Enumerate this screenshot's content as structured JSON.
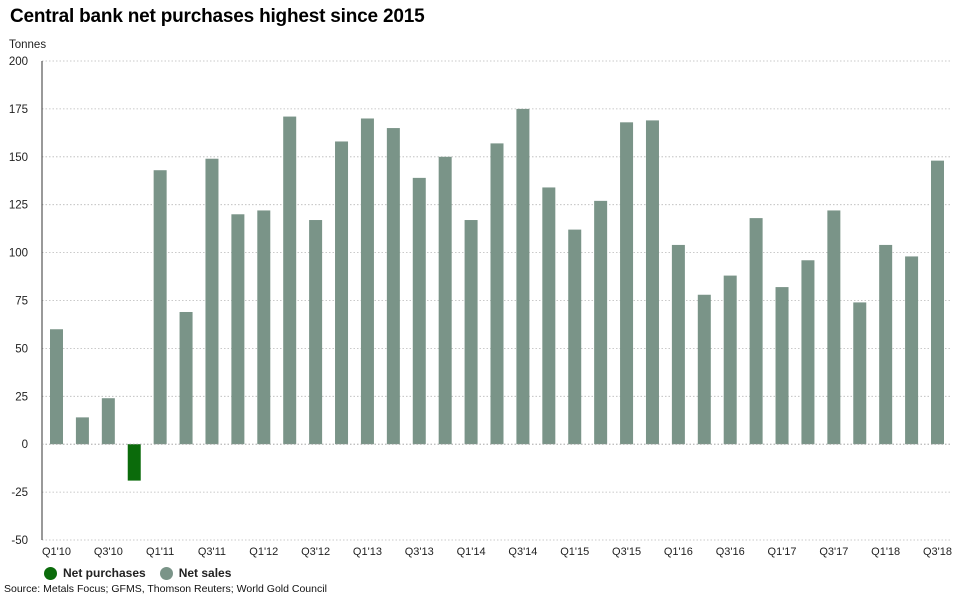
{
  "title": "Central bank net purchases highest since 2015",
  "source": "Source: Metals Focus; GFMS, Thomson Reuters; World Gold Council",
  "colors": {
    "net_purchases": "#0b6b0b",
    "net_sales": "#7a9488",
    "grid": "#b8b8b8",
    "axis": "#333333"
  },
  "legend": {
    "net_purchases": "Net purchases",
    "net_sales": "Net sales"
  },
  "chart_data": {
    "type": "bar",
    "ylabel": "Tonnes",
    "ylim": [
      -50,
      200
    ],
    "yticks": [
      -50,
      -25,
      0,
      25,
      50,
      75,
      100,
      125,
      150,
      175,
      200
    ],
    "grid": true,
    "legend_position": "bottom-left",
    "categories": [
      "Q1'10",
      "Q2'10",
      "Q3'10",
      "Q4'10",
      "Q1'11",
      "Q2'11",
      "Q3'11",
      "Q4'11",
      "Q1'12",
      "Q2'12",
      "Q3'12",
      "Q4'12",
      "Q1'13",
      "Q2'13",
      "Q3'13",
      "Q4'13",
      "Q1'14",
      "Q2'14",
      "Q3'14",
      "Q4'14",
      "Q1'15",
      "Q2'15",
      "Q3'15",
      "Q4'15",
      "Q1'16",
      "Q2'16",
      "Q3'16",
      "Q4'16",
      "Q1'17",
      "Q2'17",
      "Q3'17",
      "Q4'17",
      "Q1'18",
      "Q2'18",
      "Q3'18"
    ],
    "xtick_labels": [
      "Q1'10",
      "",
      "Q3'10",
      "",
      "Q1'11",
      "",
      "Q3'11",
      "",
      "Q1'12",
      "",
      "Q3'12",
      "",
      "Q1'13",
      "",
      "Q3'13",
      "",
      "Q1'14",
      "",
      "Q3'14",
      "",
      "Q1'15",
      "",
      "Q3'15",
      "",
      "Q1'16",
      "",
      "Q3'16",
      "",
      "Q1'17",
      "",
      "Q3'17",
      "",
      "Q1'18",
      "",
      "Q3'18"
    ],
    "values": [
      60,
      14,
      24,
      -19,
      143,
      69,
      149,
      120,
      122,
      171,
      117,
      158,
      170,
      165,
      139,
      150,
      117,
      157,
      175,
      134,
      112,
      127,
      168,
      169,
      104,
      78,
      88,
      118,
      82,
      96,
      122,
      74,
      104,
      98,
      148
    ]
  }
}
